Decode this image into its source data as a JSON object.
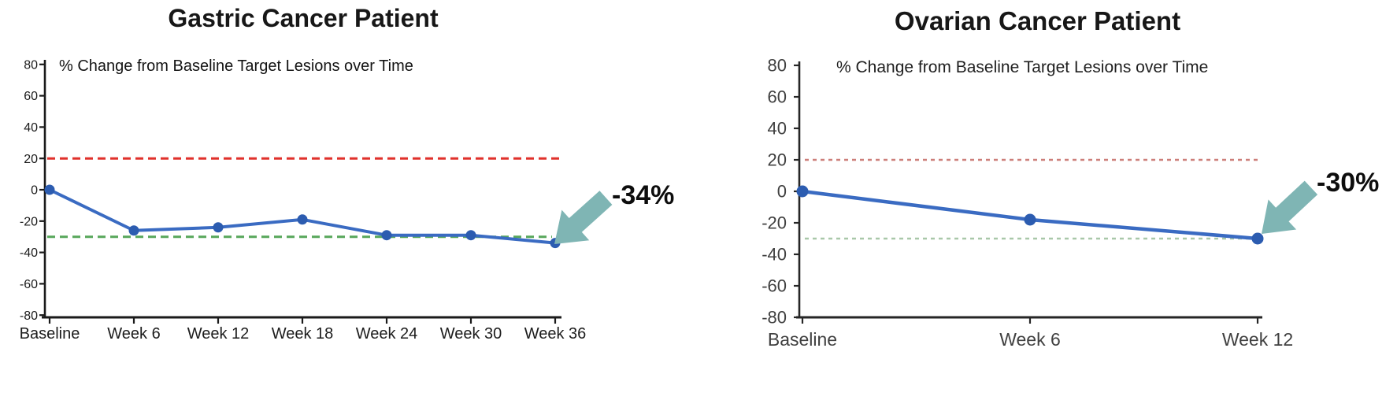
{
  "figure": {
    "background": "#ffffff"
  },
  "chart_data": [
    {
      "type": "line",
      "panel": "left",
      "title": "Gastric Cancer Patient",
      "subtitle": "% Change from Baseline Target Lesions over Time",
      "categories": [
        "Baseline",
        "Week 6",
        "Week 12",
        "Week 18",
        "Week 24",
        "Week 30",
        "Week 36"
      ],
      "values": [
        0,
        -26,
        -24,
        -19,
        -29,
        -29,
        -34
      ],
      "ylim": [
        -80,
        80
      ],
      "ytick_step": 20,
      "yticks": [
        80,
        60,
        40,
        20,
        0,
        -20,
        -40,
        -60,
        -80
      ],
      "grid": false,
      "legend": "none",
      "line_color": "#3a6bc2",
      "marker_color": "#2c5cb0",
      "axis_color": "#1a1a1a",
      "label_color": "#1c1c1c",
      "reference_lines": [
        {
          "value": 20,
          "style": "dashed",
          "color": "#e0312b"
        },
        {
          "value": -30,
          "style": "dashed",
          "color": "#57a75a"
        }
      ],
      "annotation": {
        "label": "-34%",
        "target_category": "Week 36",
        "target_value": -34,
        "arrow_color": "#7fb5b4",
        "text_color": "#0d0d0d"
      }
    },
    {
      "type": "line",
      "panel": "right",
      "title": "Ovarian Cancer Patient",
      "subtitle": "% Change from Baseline Target Lesions over Time",
      "categories": [
        "Baseline",
        "Week 6",
        "Week 12"
      ],
      "values": [
        0,
        -18,
        -30
      ],
      "ylim": [
        -80,
        80
      ],
      "ytick_step": 20,
      "yticks": [
        80,
        60,
        40,
        20,
        0,
        -20,
        -40,
        -60,
        -80
      ],
      "grid": false,
      "legend": "none",
      "line_color": "#3a6bc2",
      "marker_color": "#2c5cb0",
      "axis_color": "#262626",
      "label_color": "#404040",
      "reference_lines": [
        {
          "value": 20,
          "style": "dashed",
          "color": "#cd7f7a"
        },
        {
          "value": -30,
          "style": "dashed",
          "color": "#a9c8a9"
        }
      ],
      "annotation": {
        "label": "-30%",
        "target_category": "Week 12",
        "target_value": -30,
        "arrow_color": "#7fb5b4",
        "text_color": "#0d0d0d"
      }
    }
  ]
}
